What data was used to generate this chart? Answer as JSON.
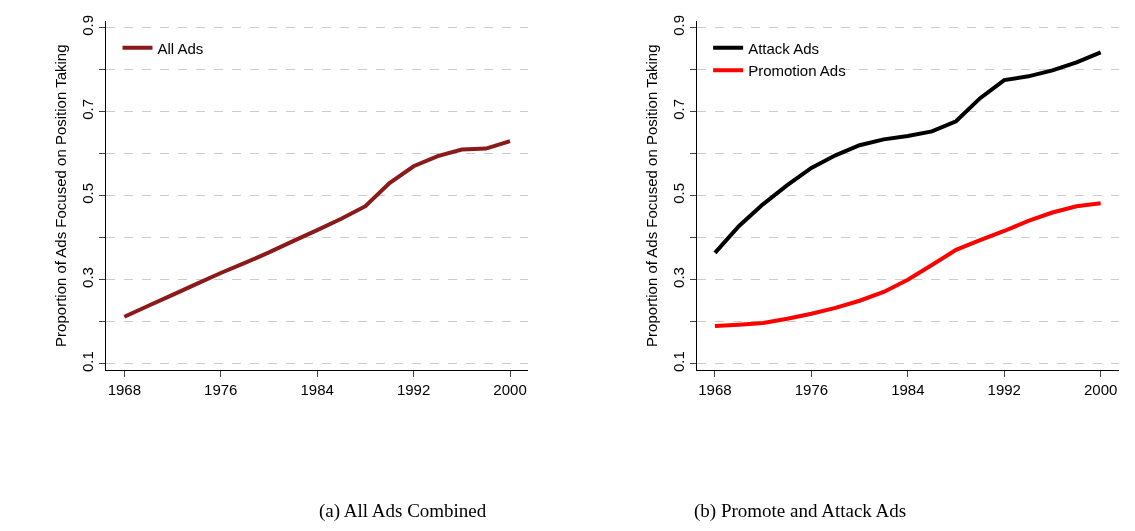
{
  "chart_data": [
    {
      "type": "line",
      "title": "(a) All Ads Combined",
      "ylabel": "Proportion of Ads Focused on Position Taking",
      "x": [
        1968,
        1970,
        1972,
        1974,
        1976,
        1978,
        1980,
        1982,
        1984,
        1986,
        1988,
        1990,
        1992,
        1994,
        1996,
        1998,
        2000
      ],
      "series": [
        {
          "name": "All Ads",
          "color": "#8b1a1a",
          "values": [
            0.212,
            0.238,
            0.264,
            0.29,
            0.316,
            0.34,
            0.365,
            0.392,
            0.418,
            0.445,
            0.475,
            0.53,
            0.57,
            0.594,
            0.61,
            0.612,
            0.63
          ]
        }
      ],
      "xlim": [
        1966.5,
        2001.5
      ],
      "xticks": [
        1968,
        1976,
        1984,
        1992,
        2000
      ],
      "ylim": [
        0.085,
        0.915
      ],
      "yticks": [
        0.1,
        {
          "value": 0.2,
          "label": null
        },
        0.3,
        {
          "value": 0.4,
          "label": null
        },
        0.5,
        {
          "value": 0.6,
          "label": null
        },
        0.7,
        {
          "value": 0.8,
          "label": null
        },
        0.9
      ],
      "grid": "y",
      "legend": "top left",
      "line_style": "solid",
      "marker": "none"
    },
    {
      "type": "line",
      "title": "(b) Promote and Attack Ads",
      "ylabel": "Proportion of Ads Focused on Position Taking",
      "x": [
        1968,
        1970,
        1972,
        1974,
        1976,
        1978,
        1980,
        1982,
        1984,
        1986,
        1988,
        1990,
        1992,
        1994,
        1996,
        1998,
        2000
      ],
      "series": [
        {
          "name": "Attack Ads",
          "color": "#000000",
          "values": [
            0.364,
            0.428,
            0.48,
            0.525,
            0.566,
            0.596,
            0.62,
            0.634,
            0.642,
            0.653,
            0.677,
            0.732,
            0.775,
            0.784,
            0.798,
            0.817,
            0.841
          ]
        },
        {
          "name": "Promotion Ads",
          "color": "#ff0000",
          "values": [
            0.19,
            0.193,
            0.197,
            0.207,
            0.219,
            0.233,
            0.25,
            0.271,
            0.3,
            0.335,
            0.371,
            0.394,
            0.416,
            0.44,
            0.46,
            0.475,
            0.482
          ]
        }
      ],
      "xlim": [
        1966.5,
        2001.5
      ],
      "xticks": [
        1968,
        1976,
        1984,
        1992,
        2000
      ],
      "ylim": [
        0.085,
        0.915
      ],
      "yticks": [
        0.1,
        {
          "value": 0.2,
          "label": null
        },
        0.3,
        {
          "value": 0.4,
          "label": null
        },
        0.5,
        {
          "value": 0.6,
          "label": null
        },
        0.7,
        {
          "value": 0.8,
          "label": null
        },
        0.9
      ],
      "grid": "y",
      "legend": "top left",
      "line_style": "solid",
      "marker": "none"
    }
  ]
}
